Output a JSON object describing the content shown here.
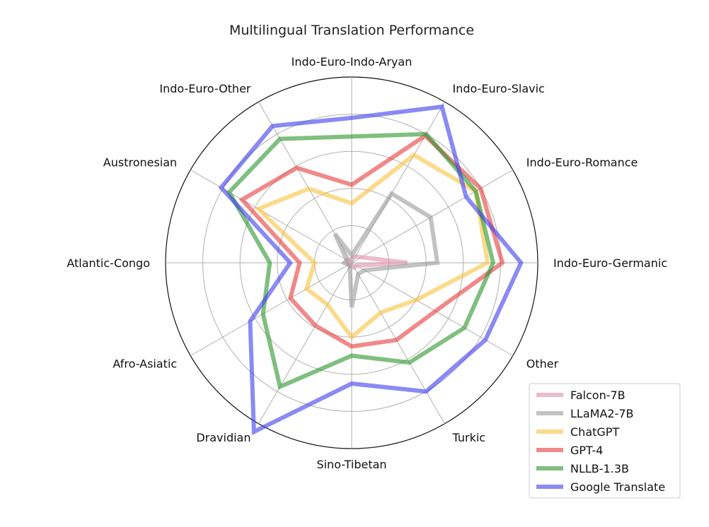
{
  "chart_data": {
    "type": "radar",
    "title": "Multilingual Translation Performance",
    "categories": [
      "Indo-Euro-Indo-Aryan",
      "Indo-Euro-Slavic",
      "Indo-Euro-Romance",
      "Indo-Euro-Germanic",
      "Other",
      "Turkic",
      "Sino-Tibetan",
      "Dravidian",
      "Afro-Asiatic",
      "Atlantic-Congo",
      "Austronesian",
      "Indo-Euro-Other"
    ],
    "rmax": 1.0,
    "grid_levels": [
      0.2,
      0.4,
      0.6,
      0.8,
      1.0
    ],
    "grid": true,
    "legend_position": "bottom-right",
    "series": [
      {
        "name": "Falcon-7B",
        "color": "#e08fa8",
        "values": [
          0.02,
          0.04,
          0.06,
          0.3,
          0.03,
          0.03,
          0.02,
          0.02,
          0.02,
          0.02,
          0.03,
          0.02
        ]
      },
      {
        "name": "LLaMA2-7B",
        "color": "#999999",
        "values": [
          0.04,
          0.43,
          0.49,
          0.46,
          0.08,
          0.07,
          0.24,
          0.02,
          0.02,
          0.04,
          0.03,
          0.18
        ]
      },
      {
        "name": "ChatGPT",
        "color": "#f9c23c",
        "values": [
          0.32,
          0.67,
          0.77,
          0.73,
          0.4,
          0.31,
          0.4,
          0.26,
          0.28,
          0.2,
          0.58,
          0.46
        ]
      },
      {
        "name": "GPT-4",
        "color": "#e63a3a",
        "values": [
          0.42,
          0.79,
          0.8,
          0.81,
          0.52,
          0.48,
          0.45,
          0.39,
          0.38,
          0.28,
          0.68,
          0.59
        ]
      },
      {
        "name": "NLLB-1.3B",
        "color": "#2a952a",
        "values": [
          0.68,
          0.8,
          0.77,
          0.76,
          0.7,
          0.62,
          0.5,
          0.77,
          0.55,
          0.44,
          0.76,
          0.77
        ]
      },
      {
        "name": "Google Translate",
        "color": "#3c3ced",
        "values": [
          0.78,
          0.97,
          0.71,
          0.91,
          0.83,
          0.8,
          0.65,
          1.05,
          0.63,
          0.33,
          0.81,
          0.85
        ]
      }
    ]
  }
}
